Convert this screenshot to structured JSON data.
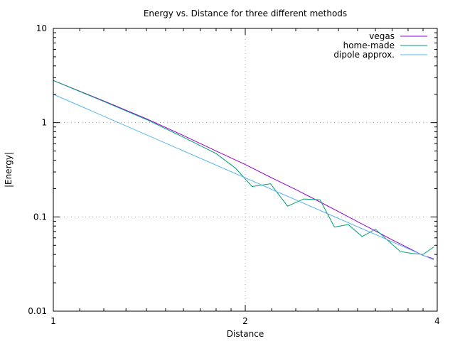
{
  "chart_data": {
    "type": "line",
    "title": "Energy vs. Distance for three different methods",
    "xlabel": "Distance",
    "ylabel": "|Energy|",
    "x_scale": "log",
    "y_scale": "log",
    "xlim": [
      1,
      4
    ],
    "ylim": [
      0.01,
      10
    ],
    "grid": true,
    "legend_position": "top-right",
    "x_ticks": [
      {
        "value": 1,
        "label": "1"
      },
      {
        "value": 2,
        "label": "2"
      },
      {
        "value": 4,
        "label": "4"
      }
    ],
    "y_ticks": [
      {
        "value": 0.01,
        "label": "0.01"
      },
      {
        "value": 0.1,
        "label": "0.1"
      },
      {
        "value": 1,
        "label": "1"
      },
      {
        "value": 10,
        "label": "10"
      }
    ],
    "series": [
      {
        "name": "vegas",
        "color": "#9400d3",
        "x": [
          1.0,
          1.2,
          1.4,
          1.6,
          1.8,
          2.0,
          2.2,
          2.4,
          2.6,
          2.8,
          3.0,
          3.2,
          3.4,
          3.6,
          3.8,
          3.95
        ],
        "y": [
          2.8,
          1.7,
          1.1,
          0.73,
          0.5,
          0.36,
          0.26,
          0.195,
          0.148,
          0.114,
          0.089,
          0.071,
          0.057,
          0.047,
          0.039,
          0.036
        ]
      },
      {
        "name": "home-made",
        "color": "#009e73",
        "x": [
          1.0,
          1.2,
          1.4,
          1.6,
          1.8,
          1.93,
          2.05,
          2.19,
          2.33,
          2.47,
          2.62,
          2.76,
          2.9,
          3.05,
          3.2,
          3.35,
          3.5,
          3.65,
          3.8,
          3.95
        ],
        "y": [
          2.8,
          1.68,
          1.08,
          0.7,
          0.47,
          0.33,
          0.21,
          0.225,
          0.13,
          0.155,
          0.152,
          0.078,
          0.083,
          0.062,
          0.074,
          0.056,
          0.043,
          0.041,
          0.04,
          0.048
        ]
      },
      {
        "name": "dipole approx.",
        "color": "#56b4e9",
        "x": [
          1.0,
          3.95
        ],
        "y": [
          2.0,
          0.035
        ]
      }
    ]
  }
}
